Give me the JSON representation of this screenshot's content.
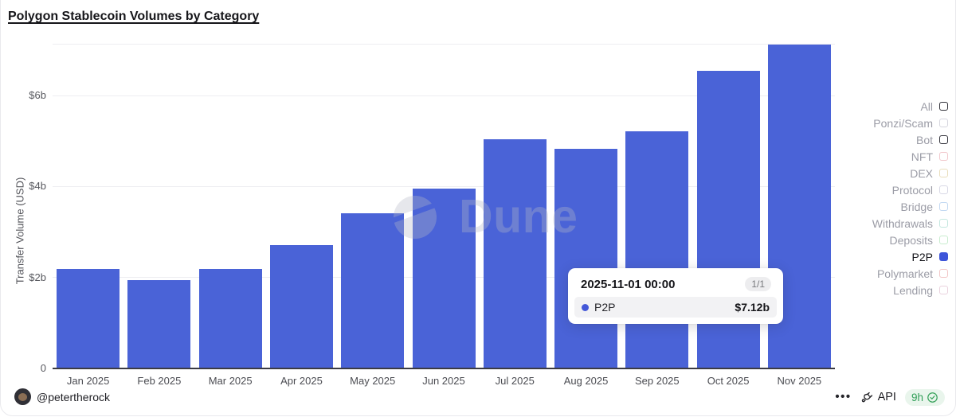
{
  "header": {
    "title": "Polygon Stablecoin Volumes by Category"
  },
  "chart_data": {
    "type": "bar",
    "title": "Polygon Stablecoin Volumes by Category",
    "xlabel": "",
    "ylabel": "Transfer Volume (USD)",
    "unit": "billions USD",
    "categories": [
      "Jan 2025",
      "Feb 2025",
      "Mar 2025",
      "Apr 2025",
      "May 2025",
      "Jun 2025",
      "Jul 2025",
      "Aug 2025",
      "Sep 2025",
      "Oct 2025",
      "Nov 2025"
    ],
    "series": [
      {
        "name": "P2P",
        "color": "#4a63d7",
        "values": [
          2.18,
          1.94,
          2.18,
          2.72,
          3.41,
          3.96,
          5.04,
          4.83,
          5.21,
          6.54,
          7.12
        ]
      }
    ],
    "ylim": [
      0,
      7.14
    ],
    "yticks": [
      {
        "value": 0,
        "label": "0"
      },
      {
        "value": 2,
        "label": "$2b"
      },
      {
        "value": 4,
        "label": "$4b"
      },
      {
        "value": 6,
        "label": "$6b"
      }
    ],
    "grid_values": [
      2,
      4,
      6,
      7.14
    ],
    "grid": true,
    "legend_position": "right"
  },
  "legend": {
    "items": [
      {
        "label": "All",
        "box_color": "#33333b",
        "filled": false,
        "active": false
      },
      {
        "label": "Ponzi/Scam",
        "box_color": "#d6d6de",
        "filled": false,
        "active": false
      },
      {
        "label": "Bot",
        "box_color": "#33333b",
        "filled": false,
        "active": false
      },
      {
        "label": "NFT",
        "box_color": "#f2c9cd",
        "filled": false,
        "active": false
      },
      {
        "label": "DEX",
        "box_color": "#e9debc",
        "filled": false,
        "active": false
      },
      {
        "label": "Protocol",
        "box_color": "#d9d9e6",
        "filled": false,
        "active": false
      },
      {
        "label": "Bridge",
        "box_color": "#c2d8f2",
        "filled": false,
        "active": false
      },
      {
        "label": "Withdrawals",
        "box_color": "#c4e7df",
        "filled": false,
        "active": false
      },
      {
        "label": "Deposits",
        "box_color": "#c9edcf",
        "filled": false,
        "active": false
      },
      {
        "label": "P2P",
        "box_color": "#3e55d9",
        "filled": true,
        "active": true
      },
      {
        "label": "Polymarket",
        "box_color": "#f2c7c7",
        "filled": false,
        "active": false
      },
      {
        "label": "Lending",
        "box_color": "#ead2de",
        "filled": false,
        "active": false
      }
    ]
  },
  "tooltip": {
    "date": "2025-11-01 00:00",
    "page": "1/1",
    "series_label": "P2P",
    "value": "$7.12b",
    "dot_color": "#4458d8"
  },
  "watermark": {
    "text": "Dune"
  },
  "footer": {
    "author": "@petertherock",
    "more_label": "•••",
    "api_label": "API",
    "freshness": "9h"
  },
  "colors": {
    "bar": "#4a63d7",
    "axis_line": "#3b3b43",
    "gridline": "#ededf1",
    "freshness_green": "#33a05a",
    "freshness_bg": "#e9f5ec"
  }
}
